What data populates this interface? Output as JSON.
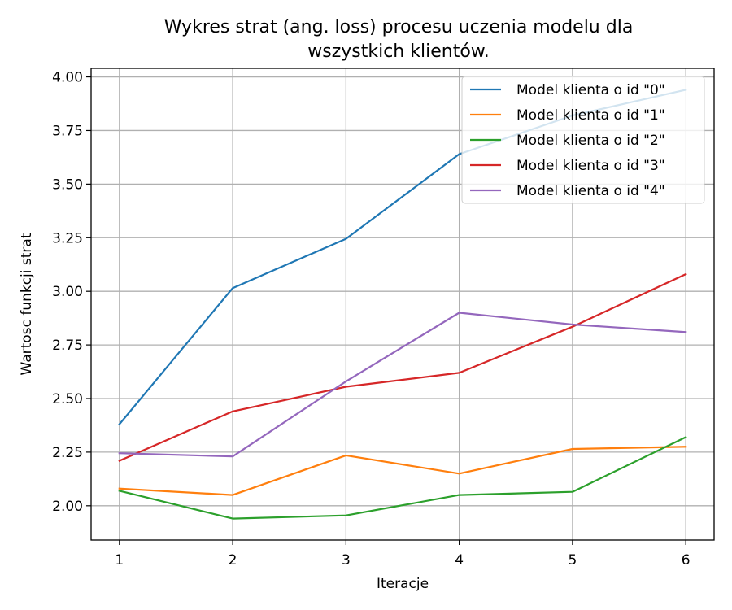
{
  "chart_data": {
    "type": "line",
    "title_line1": "Wykres strat (ang. loss) procesu uczenia modelu dla",
    "title_line2": "wszystkich klientów.",
    "xlabel": "Iteracje",
    "ylabel": "Wartosc funkcji strat",
    "x": [
      1,
      2,
      3,
      4,
      5,
      6
    ],
    "xlim": [
      0.75,
      6.25
    ],
    "ylim": [
      1.84,
      4.04
    ],
    "yticks": [
      2.0,
      2.25,
      2.5,
      2.75,
      3.0,
      3.25,
      3.5,
      3.75,
      4.0
    ],
    "ytick_labels": [
      "2.00",
      "2.25",
      "2.50",
      "2.75",
      "3.00",
      "3.25",
      "3.50",
      "3.75",
      "4.00"
    ],
    "xticks": [
      1,
      2,
      3,
      4,
      5,
      6
    ],
    "xtick_labels": [
      "1",
      "2",
      "3",
      "4",
      "5",
      "6"
    ],
    "grid": true,
    "legend_position": "top-right",
    "series": [
      {
        "name": "Model klienta o id \"0\"",
        "color": "#1f77b4",
        "values": [
          2.38,
          3.015,
          3.245,
          3.64,
          3.82,
          3.94
        ]
      },
      {
        "name": "Model klienta o id \"1\"",
        "color": "#ff7f0e",
        "values": [
          2.08,
          2.05,
          2.235,
          2.15,
          2.265,
          2.275
        ]
      },
      {
        "name": "Model klienta o id \"2\"",
        "color": "#2ca02c",
        "values": [
          2.07,
          1.94,
          1.955,
          2.05,
          2.065,
          2.32
        ]
      },
      {
        "name": "Model klienta o id \"3\"",
        "color": "#d62728",
        "values": [
          2.21,
          2.44,
          2.555,
          2.62,
          2.835,
          3.08
        ]
      },
      {
        "name": "Model klienta o id \"4\"",
        "color": "#9467bd",
        "values": [
          2.245,
          2.23,
          2.58,
          2.9,
          2.845,
          2.81
        ]
      }
    ]
  }
}
